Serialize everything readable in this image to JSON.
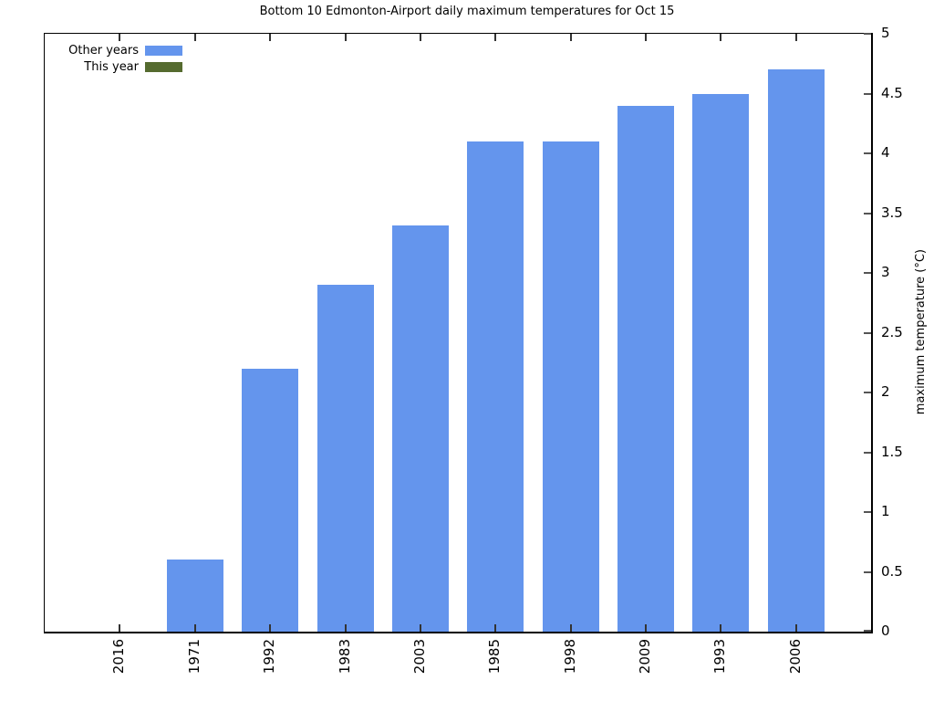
{
  "figure": {
    "title": "Bottom 10 Edmonton-Airport daily maximum temperatures for Oct 15"
  },
  "legend": {
    "items": [
      {
        "label": "Other years",
        "color": "#6495ED",
        "series": "other_years"
      },
      {
        "label": "This year",
        "color": "#556B2F",
        "series": "this_year"
      }
    ]
  },
  "chart_data": {
    "type": "bar",
    "title": "Bottom 10 Edmonton-Airport daily maximum temperatures for Oct 15",
    "categories": [
      "2016",
      "1971",
      "1992",
      "1983",
      "2003",
      "1985",
      "1998",
      "2009",
      "1993",
      "2006"
    ],
    "values": [
      0.0,
      0.6,
      2.2,
      2.9,
      3.4,
      4.1,
      4.1,
      4.4,
      4.5,
      4.7
    ],
    "default_series": "other_years",
    "series_by_category": {
      "2016": "this_year"
    },
    "colors": {
      "other_years": "#6495ED",
      "this_year": "#556B2F"
    },
    "xlabel": "",
    "ylabel": "maximum temperature (°C)",
    "ylim": [
      0,
      5
    ],
    "yticks": [
      "0",
      "0.5",
      "1",
      "1.5",
      "2",
      "2.5",
      "3",
      "3.5",
      "4",
      "4.5",
      "5"
    ],
    "legend_position": "upper left",
    "grid": false,
    "bar_width_fraction": 0.75,
    "tick_direction": "in"
  }
}
